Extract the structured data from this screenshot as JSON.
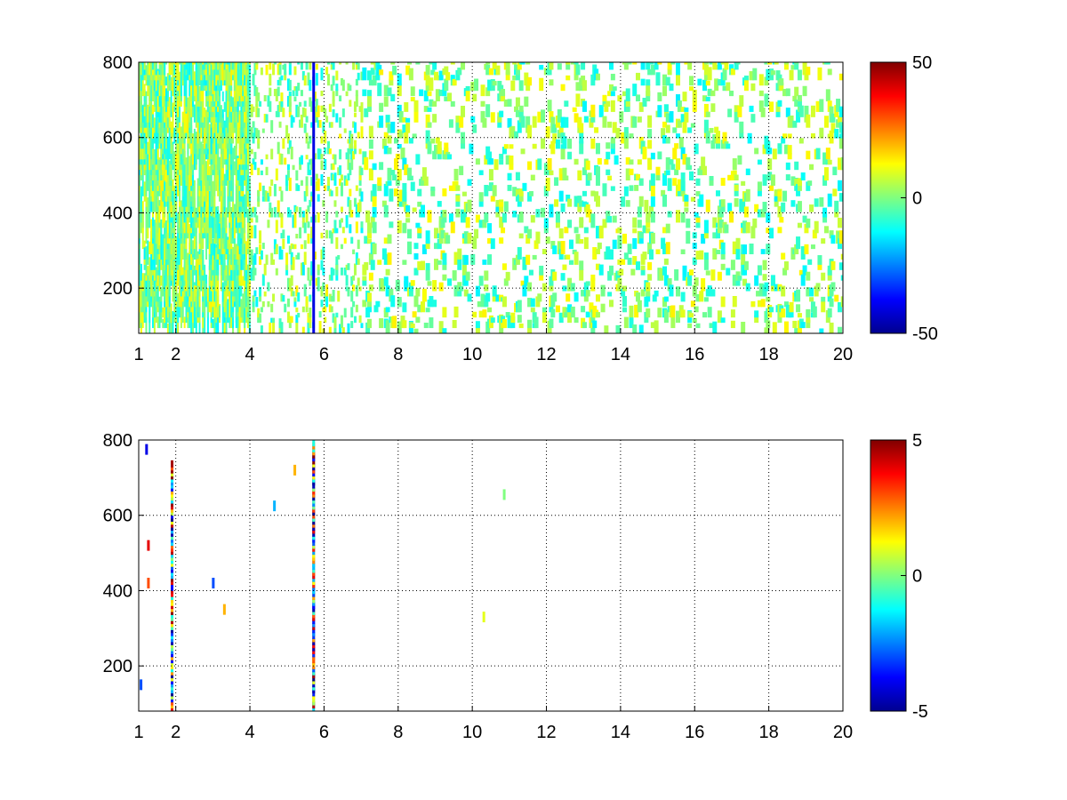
{
  "chart_data": [
    {
      "type": "heatmap",
      "title": "",
      "xlabel": "",
      "ylabel": "",
      "xlim": [
        1,
        20
      ],
      "ylim": [
        80,
        800
      ],
      "x_ticks": [
        1,
        2,
        4,
        6,
        8,
        10,
        12,
        14,
        16,
        18,
        20
      ],
      "y_ticks": [
        200,
        400,
        600,
        800
      ],
      "grid": true,
      "colormap": "jet",
      "clim": [
        -50,
        50
      ],
      "colorbar_ticks": [
        -50,
        0,
        50
      ],
      "description_pattern": "sparse",
      "x_tick_labels": [
        "1",
        "2",
        "4",
        "6",
        "8",
        "10",
        "12",
        "14",
        "16",
        "18",
        "20"
      ],
      "y_tick_labels": [
        "200",
        "400",
        "600",
        "800"
      ],
      "colorbar_tick_labels": [
        "-50",
        "0",
        "50"
      ],
      "strong_columns": [
        {
          "x": 5.72,
          "value": -40
        }
      ]
    },
    {
      "type": "heatmap",
      "title": "",
      "xlabel": "",
      "ylabel": "",
      "xlim": [
        1,
        20
      ],
      "ylim": [
        80,
        800
      ],
      "x_ticks": [
        1,
        2,
        4,
        6,
        8,
        10,
        12,
        14,
        16,
        18,
        20
      ],
      "y_ticks": [
        200,
        400,
        600,
        800
      ],
      "grid": true,
      "colormap": "jet",
      "clim": [
        -5,
        5
      ],
      "colorbar_ticks": [
        -5,
        0,
        5
      ],
      "x_tick_labels": [
        "1",
        "2",
        "4",
        "6",
        "8",
        "10",
        "12",
        "14",
        "16",
        "18",
        "20"
      ],
      "y_tick_labels": [
        "200",
        "400",
        "600",
        "800"
      ],
      "colorbar_tick_labels": [
        "-5",
        "0",
        "5"
      ],
      "strong_columns": [
        {
          "x": 5.72,
          "y_range": [
            90,
            795
          ],
          "value": "mixed"
        },
        {
          "x": 1.9,
          "y_range": [
            90,
            740
          ],
          "value": "mixed"
        }
      ],
      "points": [
        {
          "x": 1.2,
          "y": 775,
          "value": -4
        },
        {
          "x": 1.25,
          "y": 520,
          "value": 4
        },
        {
          "x": 1.25,
          "y": 420,
          "value": 3
        },
        {
          "x": 1.05,
          "y": 150,
          "value": -3
        },
        {
          "x": 3.0,
          "y": 420,
          "value": -3
        },
        {
          "x": 3.3,
          "y": 350,
          "value": 2
        },
        {
          "x": 4.65,
          "y": 625,
          "value": -2
        },
        {
          "x": 5.2,
          "y": 720,
          "value": 2
        },
        {
          "x": 10.3,
          "y": 330,
          "value": 1
        },
        {
          "x": 10.85,
          "y": 655,
          "value": 0
        }
      ]
    }
  ]
}
